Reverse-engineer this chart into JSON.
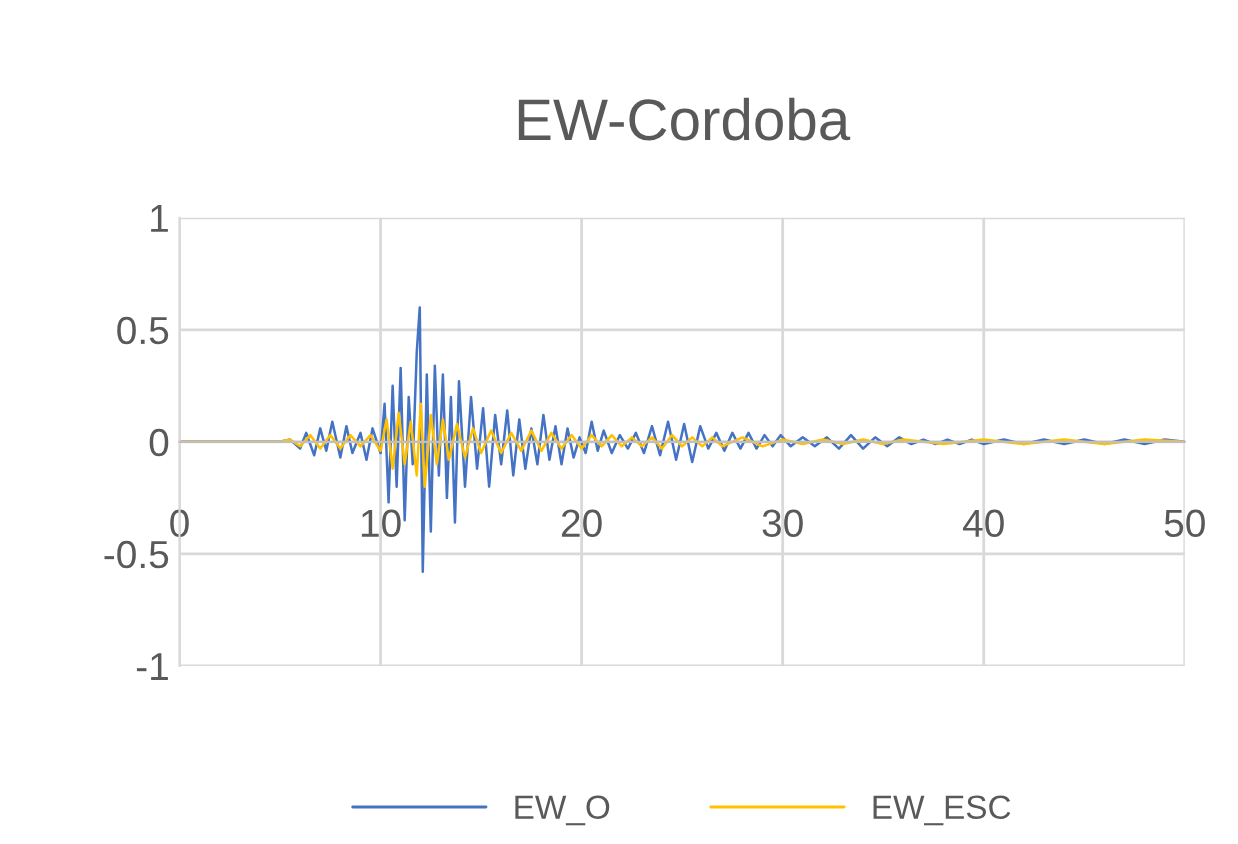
{
  "chart_data": {
    "type": "line",
    "title": "EW-Cordoba",
    "xlim": [
      0,
      50
    ],
    "xticks": [
      0,
      10,
      20,
      30,
      40,
      50
    ],
    "ylim": [
      -1,
      1
    ],
    "yticks": [
      -1,
      -0.5,
      0,
      0.5,
      1
    ],
    "grid": true,
    "legend": "bottom",
    "marker": "none",
    "line_style": "solid",
    "series": [
      {
        "name": "EW_O",
        "color": "#4472c4",
        "x": [
          0,
          5,
          5.5,
          6,
          6.3,
          6.7,
          7,
          7.3,
          7.6,
          8,
          8.3,
          8.6,
          9,
          9.3,
          9.6,
          10,
          10.2,
          10.4,
          10.6,
          10.8,
          11,
          11.2,
          11.4,
          11.6,
          11.8,
          11.95,
          12.1,
          12.3,
          12.5,
          12.7,
          12.9,
          13.1,
          13.3,
          13.5,
          13.7,
          13.9,
          14.2,
          14.5,
          14.8,
          15.1,
          15.4,
          15.7,
          16,
          16.3,
          16.6,
          16.9,
          17.2,
          17.5,
          17.8,
          18.1,
          18.4,
          18.7,
          19,
          19.3,
          19.6,
          19.9,
          20.2,
          20.5,
          20.8,
          21.1,
          21.5,
          21.9,
          22.3,
          22.7,
          23.1,
          23.5,
          23.9,
          24.3,
          24.7,
          25.1,
          25.5,
          25.9,
          26.3,
          26.7,
          27.1,
          27.5,
          27.9,
          28.3,
          28.7,
          29.1,
          29.5,
          29.9,
          30.4,
          31,
          31.6,
          32.2,
          32.8,
          33.4,
          34,
          34.6,
          35.2,
          35.8,
          36.4,
          37,
          37.6,
          38.2,
          38.8,
          39.4,
          40,
          41,
          42,
          43,
          44,
          45,
          46,
          47,
          48,
          49,
          50
        ],
        "values": [
          0,
          0,
          0.01,
          -0.03,
          0.04,
          -0.06,
          0.06,
          -0.04,
          0.09,
          -0.07,
          0.07,
          -0.05,
          0.04,
          -0.08,
          0.06,
          -0.05,
          0.17,
          -0.27,
          0.25,
          -0.2,
          0.33,
          -0.35,
          0.2,
          -0.1,
          0.4,
          0.6,
          -0.58,
          0.3,
          -0.4,
          0.34,
          -0.15,
          0.3,
          -0.25,
          0.2,
          -0.36,
          0.27,
          -0.2,
          0.2,
          -0.12,
          0.15,
          -0.2,
          0.12,
          -0.1,
          0.14,
          -0.15,
          0.1,
          -0.12,
          0.06,
          -0.1,
          0.12,
          -0.08,
          0.07,
          -0.1,
          0.06,
          -0.07,
          0.02,
          -0.05,
          0.09,
          -0.04,
          0.05,
          -0.05,
          0.03,
          -0.03,
          0.04,
          -0.05,
          0.07,
          -0.06,
          0.09,
          -0.08,
          0.08,
          -0.09,
          0.07,
          -0.03,
          0.04,
          -0.04,
          0.04,
          -0.03,
          0.04,
          -0.03,
          0.03,
          -0.02,
          0.03,
          -0.02,
          0.02,
          -0.02,
          0.02,
          -0.03,
          0.03,
          -0.03,
          0.02,
          -0.02,
          0.02,
          -0.01,
          0.01,
          -0.01,
          0.01,
          -0.01,
          0.01,
          -0.01,
          0.01,
          -0.01,
          0.01,
          -0.01,
          0.01,
          -0.01,
          0.01,
          -0.01,
          0.01,
          0
        ]
      },
      {
        "name": "EW_ESC",
        "color": "#ffc000",
        "x": [
          0,
          5,
          5.5,
          6,
          6.5,
          7,
          7.5,
          8,
          8.5,
          9,
          9.5,
          10,
          10.3,
          10.6,
          10.9,
          11.2,
          11.5,
          11.8,
          12,
          12.2,
          12.5,
          12.8,
          13.1,
          13.4,
          13.8,
          14.2,
          14.6,
          15,
          15.5,
          16,
          16.5,
          17,
          17.5,
          18,
          18.5,
          19,
          19.5,
          20,
          20.5,
          21,
          21.5,
          22,
          22.5,
          23,
          23.5,
          24,
          24.5,
          25,
          25.5,
          26,
          26.5,
          27,
          28,
          29,
          30,
          31,
          32,
          33,
          34,
          35,
          36,
          38,
          40,
          42,
          44,
          46,
          48,
          50
        ],
        "values": [
          0,
          0,
          0.01,
          -0.02,
          0.03,
          -0.03,
          0.03,
          -0.03,
          0.03,
          -0.02,
          0.03,
          -0.04,
          0.1,
          -0.12,
          0.13,
          -0.1,
          0.09,
          -0.15,
          0.17,
          -0.2,
          0.12,
          -0.1,
          0.1,
          -0.08,
          0.08,
          -0.07,
          0.06,
          -0.05,
          0.05,
          -0.05,
          0.04,
          -0.04,
          0.05,
          -0.04,
          0.04,
          -0.03,
          0.03,
          -0.03,
          0.03,
          -0.02,
          0.03,
          -0.02,
          0.02,
          -0.02,
          0.02,
          -0.03,
          0.03,
          -0.02,
          0.02,
          -0.02,
          0.02,
          -0.02,
          0.02,
          -0.02,
          0.01,
          -0.01,
          0.01,
          -0.01,
          0.01,
          -0.01,
          0.01,
          -0.01,
          0.01,
          -0.01,
          0.01,
          -0.01,
          0.01,
          0
        ]
      }
    ]
  }
}
